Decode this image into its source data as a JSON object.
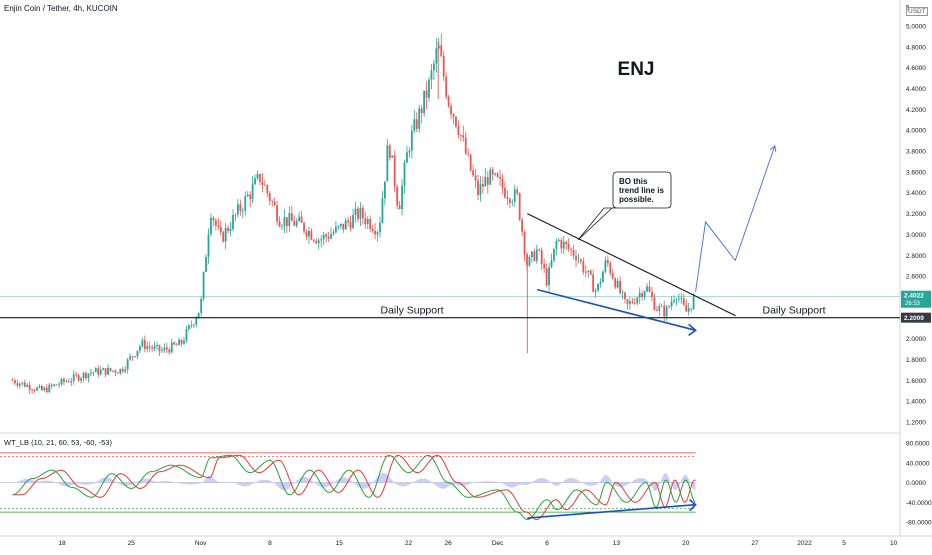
{
  "header": {
    "symbol_line": "Enjin Coin / Tether, 4h, KUCOIN",
    "currency": "USDT",
    "indicator_line": "WT_LB (10, 21, 60, 53, -60, -53)"
  },
  "annotations": {
    "big_label": "ENJ",
    "support_left": "Daily Support",
    "support_right": "Daily Support",
    "callout_lines": [
      "BO this",
      "trend line is",
      "possible."
    ]
  },
  "price_labels": {
    "current": "2.4022",
    "countdown": "26:53",
    "support": "2.2009"
  },
  "colors": {
    "up": "#26a69a",
    "down": "#ef5350",
    "arrow_blue": "#1e4fbf",
    "projection_blue": "#3b6fe0",
    "current_price_bg": "#26a69a",
    "support_bg": "#363a45",
    "wt_green": "#2e9e3a",
    "wt_red": "#e53935",
    "wt_area": "#9ea8f5",
    "ob_line": "#e53935",
    "os_line": "#2e9e3a"
  },
  "chart_data": [
    {
      "type": "candlestick",
      "title": "Enjin Coin / Tether, 4h, KUCOIN",
      "x_ticks": [
        "18",
        "25",
        "Nov",
        "8",
        "15",
        "22",
        "26",
        "Dec",
        "6",
        "13",
        "20",
        "27",
        "2022",
        "5",
        "10"
      ],
      "y_ticks": [
        "5",
        "5.0000",
        "4.8000",
        "4.6000",
        "4.4000",
        "4.2000",
        "4.0000",
        "3.8000",
        "3.6000",
        "3.4000",
        "3.2000",
        "3.0000",
        "2.8000",
        "2.6000",
        "2.2000",
        "2.0000",
        "1.8000",
        "1.6000",
        "1.4000",
        "1.2000"
      ],
      "ylim": [
        1.15,
        5.05
      ],
      "path_points": [
        [
          "Oct 13",
          1.6
        ],
        [
          "Oct 16",
          1.5
        ],
        [
          "Oct 18",
          1.58
        ],
        [
          "Oct 21",
          1.68
        ],
        [
          "Oct 24",
          1.7
        ],
        [
          "Oct 26",
          1.95
        ],
        [
          "Oct 28",
          1.88
        ],
        [
          "Oct 30",
          1.95
        ],
        [
          "Nov 1",
          2.3
        ],
        [
          "Nov 2",
          3.25
        ],
        [
          "Nov 3",
          2.95
        ],
        [
          "Nov 5",
          3.25
        ],
        [
          "Nov 7",
          3.55
        ],
        [
          "Nov 9",
          3.15
        ],
        [
          "Nov 11",
          3.1
        ],
        [
          "Nov 13",
          2.95
        ],
        [
          "Nov 15",
          3.05
        ],
        [
          "Nov 17",
          3.2
        ],
        [
          "Nov 19",
          3.05
        ],
        [
          "Nov 20",
          3.9
        ],
        [
          "Nov 21",
          3.25
        ],
        [
          "Nov 22",
          3.85
        ],
        [
          "Nov 24",
          4.4
        ],
        [
          "Nov 25",
          4.8
        ],
        [
          "Nov 26",
          4.3
        ],
        [
          "Nov 27",
          4.05
        ],
        [
          "Nov 28",
          3.7
        ],
        [
          "Nov 29",
          3.4
        ],
        [
          "Nov 30",
          3.55
        ],
        [
          "Dec 1",
          3.5
        ],
        [
          "Dec 2",
          3.4
        ],
        [
          "Dec 3",
          3.35
        ],
        [
          "Dec 4",
          2.7
        ],
        [
          "Dec 5",
          2.85
        ],
        [
          "Dec 6",
          2.55
        ],
        [
          "Dec 7",
          2.95
        ],
        [
          "Dec 9",
          2.8
        ],
        [
          "Dec 11",
          2.45
        ],
        [
          "Dec 12",
          2.75
        ],
        [
          "Dec 14",
          2.3
        ],
        [
          "Dec 16",
          2.5
        ],
        [
          "Dec 17",
          2.3
        ],
        [
          "Dec 18",
          2.25
        ],
        [
          "Dec 19",
          2.45
        ],
        [
          "Dec 20",
          2.25
        ],
        [
          "Dec 21",
          2.4
        ]
      ],
      "notable_wicks": {
        "high": [
          "Nov 25",
          4.85
        ],
        "low": [
          "Dec 4",
          1.86
        ]
      },
      "support_level": 2.2009,
      "current_price": 2.4022,
      "descending_trendline": [
        [
          "Dec 4",
          3.2
        ],
        [
          "Dec 21",
          2.22
        ]
      ],
      "lower_arrow": [
        [
          "Dec 5",
          2.47
        ],
        [
          "Dec 21",
          2.08
        ]
      ],
      "projection_path": [
        [
          "Dec 21",
          2.45
        ],
        [
          "Dec 22",
          3.12
        ],
        [
          "Dec 25",
          2.75
        ],
        [
          "Dec 29",
          3.85
        ]
      ]
    },
    {
      "type": "line",
      "title": "WT_LB (10, 21, 60, 53, -60, -53)",
      "y_ticks": [
        "80.0000",
        "40.0000",
        "0.0000",
        "-40.0000",
        "-80.0000"
      ],
      "ylim": [
        -100,
        100
      ],
      "levels": [
        60,
        53,
        -53,
        -60
      ],
      "wt1_points": [
        [
          "Oct 13",
          -25
        ],
        [
          "Oct 15",
          8
        ],
        [
          "Oct 17",
          25
        ],
        [
          "Oct 19",
          -10
        ],
        [
          "Oct 21",
          -30
        ],
        [
          "Oct 23",
          18
        ],
        [
          "Oct 25",
          -12
        ],
        [
          "Oct 27",
          22
        ],
        [
          "Oct 29",
          35
        ],
        [
          "Nov 1",
          10
        ],
        [
          "Nov 2",
          50
        ],
        [
          "Nov 4",
          55
        ],
        [
          "Nov 6",
          20
        ],
        [
          "Nov 8",
          45
        ],
        [
          "Nov 10",
          -25
        ],
        [
          "Nov 12",
          25
        ],
        [
          "Nov 14",
          -20
        ],
        [
          "Nov 16",
          25
        ],
        [
          "Nov 18",
          -30
        ],
        [
          "Nov 20",
          55
        ],
        [
          "Nov 22",
          20
        ],
        [
          "Nov 24",
          55
        ],
        [
          "Nov 26",
          0
        ],
        [
          "Nov 28",
          -30
        ],
        [
          "Dec 1",
          -15
        ],
        [
          "Dec 3",
          -60
        ],
        [
          "Dec 4",
          -75
        ],
        [
          "Dec 6",
          -35
        ],
        [
          "Dec 7",
          -55
        ],
        [
          "Dec 9",
          -15
        ],
        [
          "Dec 11",
          -45
        ],
        [
          "Dec 12",
          0
        ],
        [
          "Dec 14",
          -40
        ],
        [
          "Dec 16",
          0
        ],
        [
          "Dec 17",
          -50
        ],
        [
          "Dec 18",
          5
        ],
        [
          "Dec 19",
          -40
        ],
        [
          "Dec 20",
          5
        ],
        [
          "Dec 21",
          -40
        ]
      ],
      "lower_arrow": [
        [
          "Dec 4",
          -72
        ],
        [
          "Dec 21",
          -45
        ]
      ]
    }
  ]
}
